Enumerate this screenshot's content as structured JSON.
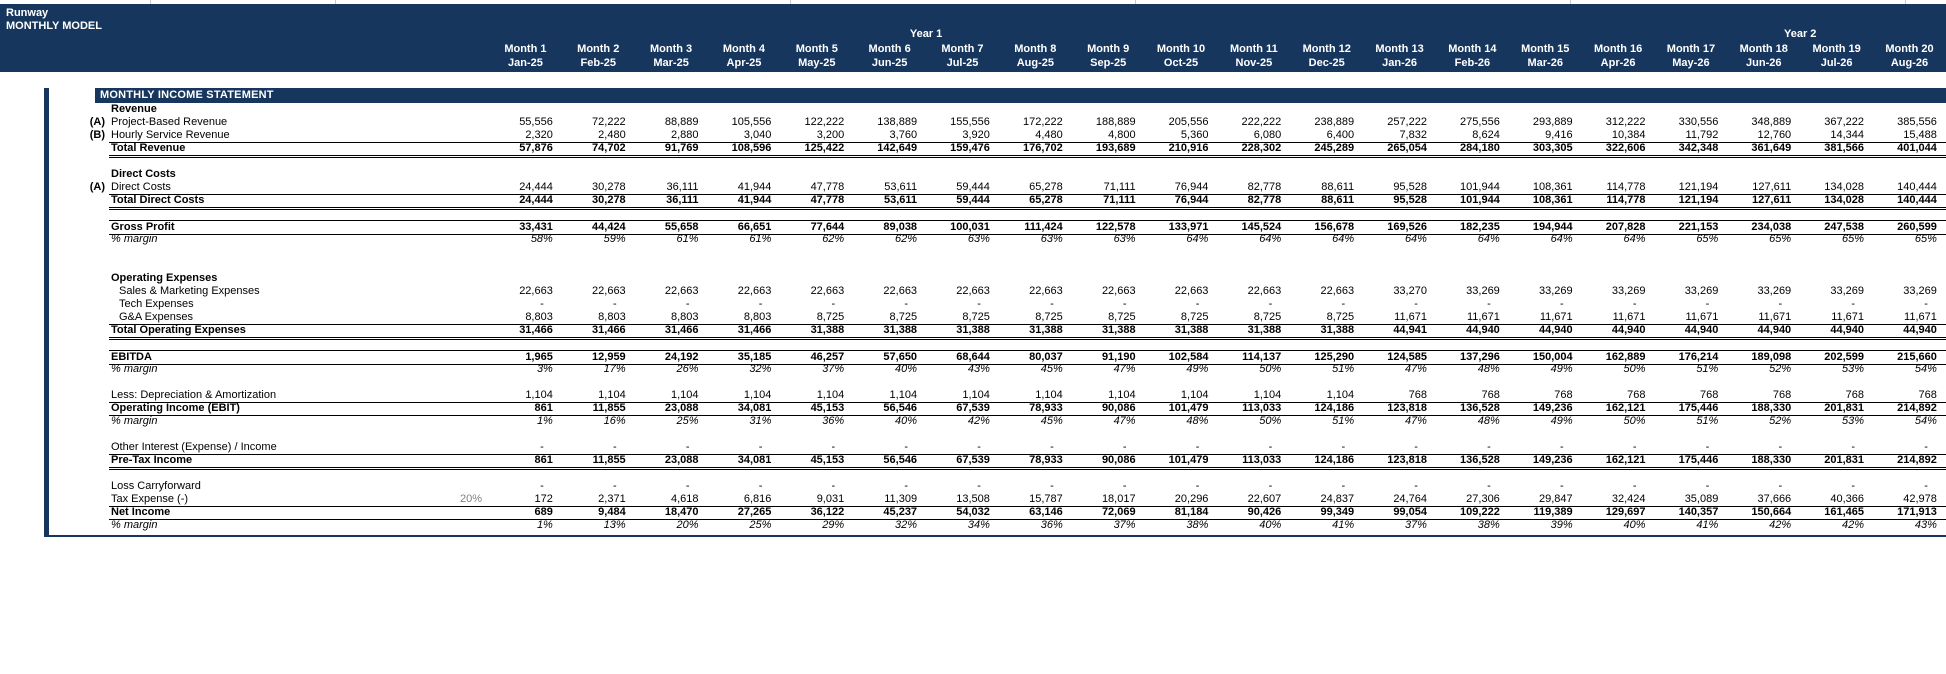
{
  "app": {
    "title_line1": "Runway",
    "title_line2": "MONTHLY MODEL"
  },
  "colors": {
    "navy": "#17365D",
    "assumption_gray": "#808080"
  },
  "header": {
    "year1_label": "Year 1",
    "year2_label": "Year 2",
    "months": [
      {
        "name": "Month 1",
        "date": "Jan-25"
      },
      {
        "name": "Month 2",
        "date": "Feb-25"
      },
      {
        "name": "Month 3",
        "date": "Mar-25"
      },
      {
        "name": "Month 4",
        "date": "Apr-25"
      },
      {
        "name": "Month 5",
        "date": "May-25"
      },
      {
        "name": "Month 6",
        "date": "Jun-25"
      },
      {
        "name": "Month 7",
        "date": "Jul-25"
      },
      {
        "name": "Month 8",
        "date": "Aug-25"
      },
      {
        "name": "Month 9",
        "date": "Sep-25"
      },
      {
        "name": "Month 10",
        "date": "Oct-25"
      },
      {
        "name": "Month 11",
        "date": "Nov-25"
      },
      {
        "name": "Month 12",
        "date": "Dec-25"
      },
      {
        "name": "Month 13",
        "date": "Jan-26"
      },
      {
        "name": "Month 14",
        "date": "Feb-26"
      },
      {
        "name": "Month 15",
        "date": "Mar-26"
      },
      {
        "name": "Month 16",
        "date": "Apr-26"
      },
      {
        "name": "Month 17",
        "date": "May-26"
      },
      {
        "name": "Month 18",
        "date": "Jun-26"
      },
      {
        "name": "Month 19",
        "date": "Jul-26"
      },
      {
        "name": "Month 20",
        "date": "Aug-26"
      }
    ]
  },
  "statement": {
    "title": "MONTHLY INCOME STATEMENT",
    "rows": [
      {
        "t": "section",
        "label": "Revenue"
      },
      {
        "t": "item",
        "prefix": "(A)",
        "label": "Project-Based Revenue",
        "v": [
          "55,556",
          "72,222",
          "88,889",
          "105,556",
          "122,222",
          "138,889",
          "155,556",
          "172,222",
          "188,889",
          "205,556",
          "222,222",
          "238,889",
          "257,222",
          "275,556",
          "293,889",
          "312,222",
          "330,556",
          "348,889",
          "367,222",
          "385,556"
        ]
      },
      {
        "t": "item",
        "prefix": "(B)",
        "label": "Hourly Service Revenue",
        "bb": "s",
        "v": [
          "2,320",
          "2,480",
          "2,880",
          "3,040",
          "3,200",
          "3,760",
          "3,920",
          "4,480",
          "4,800",
          "5,360",
          "6,080",
          "6,400",
          "7,832",
          "8,624",
          "9,416",
          "10,384",
          "11,792",
          "12,760",
          "14,344",
          "15,488"
        ]
      },
      {
        "t": "total",
        "label": "Total Revenue",
        "bb": "d",
        "v": [
          "57,876",
          "74,702",
          "91,769",
          "108,596",
          "125,422",
          "142,649",
          "159,476",
          "176,702",
          "193,689",
          "210,916",
          "228,302",
          "245,289",
          "265,054",
          "284,180",
          "303,305",
          "322,606",
          "342,348",
          "361,649",
          "381,566",
          "401,044"
        ]
      },
      {
        "t": "blank"
      },
      {
        "t": "section",
        "label": "Direct Costs"
      },
      {
        "t": "item",
        "prefix": "(A)",
        "label": "Direct Costs",
        "bb": "s",
        "v": [
          "24,444",
          "30,278",
          "36,111",
          "41,944",
          "47,778",
          "53,611",
          "59,444",
          "65,278",
          "71,111",
          "76,944",
          "82,778",
          "88,611",
          "95,528",
          "101,944",
          "108,361",
          "114,778",
          "121,194",
          "127,611",
          "134,028",
          "140,444"
        ]
      },
      {
        "t": "total",
        "label": "Total Direct Costs",
        "bb": "d",
        "v": [
          "24,444",
          "30,278",
          "36,111",
          "41,944",
          "47,778",
          "53,611",
          "59,444",
          "65,278",
          "71,111",
          "76,944",
          "82,778",
          "88,611",
          "95,528",
          "101,944",
          "108,361",
          "114,778",
          "121,194",
          "127,611",
          "134,028",
          "140,444"
        ]
      },
      {
        "t": "blank"
      },
      {
        "t": "total",
        "label": "Gross Profit",
        "bt": "s",
        "bb": "s",
        "v": [
          "33,431",
          "44,424",
          "55,658",
          "66,651",
          "77,644",
          "89,038",
          "100,031",
          "111,424",
          "122,578",
          "133,971",
          "145,524",
          "156,678",
          "169,526",
          "182,235",
          "194,944",
          "207,828",
          "221,153",
          "234,038",
          "247,538",
          "260,599"
        ]
      },
      {
        "t": "margin",
        "label": "% margin",
        "v": [
          "58%",
          "59%",
          "61%",
          "61%",
          "62%",
          "62%",
          "63%",
          "63%",
          "63%",
          "64%",
          "64%",
          "64%",
          "64%",
          "64%",
          "64%",
          "64%",
          "65%",
          "65%",
          "65%",
          "65%"
        ]
      },
      {
        "t": "blank"
      },
      {
        "t": "blank"
      },
      {
        "t": "section",
        "label": "Operating Expenses"
      },
      {
        "t": "item",
        "indent": true,
        "label": "Sales & Marketing Expenses",
        "v": [
          "22,663",
          "22,663",
          "22,663",
          "22,663",
          "22,663",
          "22,663",
          "22,663",
          "22,663",
          "22,663",
          "22,663",
          "22,663",
          "22,663",
          "33,270",
          "33,269",
          "33,269",
          "33,269",
          "33,269",
          "33,269",
          "33,269",
          "33,269"
        ]
      },
      {
        "t": "item",
        "indent": true,
        "label": "Tech Expenses",
        "v": [
          "-",
          "-",
          "-",
          "-",
          "-",
          "-",
          "-",
          "-",
          "-",
          "-",
          "-",
          "-",
          "-",
          "-",
          "-",
          "-",
          "-",
          "-",
          "-",
          "-"
        ]
      },
      {
        "t": "item",
        "indent": true,
        "label": "G&A Expenses",
        "bb": "s",
        "v": [
          "8,803",
          "8,803",
          "8,803",
          "8,803",
          "8,725",
          "8,725",
          "8,725",
          "8,725",
          "8,725",
          "8,725",
          "8,725",
          "8,725",
          "11,671",
          "11,671",
          "11,671",
          "11,671",
          "11,671",
          "11,671",
          "11,671",
          "11,671"
        ]
      },
      {
        "t": "total",
        "label": "Total Operating Expenses",
        "bb": "d",
        "v": [
          "31,466",
          "31,466",
          "31,466",
          "31,466",
          "31,388",
          "31,388",
          "31,388",
          "31,388",
          "31,388",
          "31,388",
          "31,388",
          "31,388",
          "44,941",
          "44,940",
          "44,940",
          "44,940",
          "44,940",
          "44,940",
          "44,940",
          "44,940"
        ]
      },
      {
        "t": "blank"
      },
      {
        "t": "total",
        "label": "EBITDA",
        "bt": "s",
        "bb": "s",
        "v": [
          "1,965",
          "12,959",
          "24,192",
          "35,185",
          "46,257",
          "57,650",
          "68,644",
          "80,037",
          "91,190",
          "102,584",
          "114,137",
          "125,290",
          "124,585",
          "137,296",
          "150,004",
          "162,889",
          "176,214",
          "189,098",
          "202,599",
          "215,660"
        ]
      },
      {
        "t": "margin",
        "label": "% margin",
        "v": [
          "3%",
          "17%",
          "26%",
          "32%",
          "37%",
          "40%",
          "43%",
          "45%",
          "47%",
          "49%",
          "50%",
          "51%",
          "47%",
          "48%",
          "49%",
          "50%",
          "51%",
          "52%",
          "53%",
          "54%"
        ]
      },
      {
        "t": "blank"
      },
      {
        "t": "item",
        "label": "Less: Depreciation & Amortization",
        "bb": "s",
        "v": [
          "1,104",
          "1,104",
          "1,104",
          "1,104",
          "1,104",
          "1,104",
          "1,104",
          "1,104",
          "1,104",
          "1,104",
          "1,104",
          "1,104",
          "768",
          "768",
          "768",
          "768",
          "768",
          "768",
          "768",
          "768"
        ]
      },
      {
        "t": "total",
        "label": "Operating Income (EBIT)",
        "bb": "s",
        "v": [
          "861",
          "11,855",
          "23,088",
          "34,081",
          "45,153",
          "56,546",
          "67,539",
          "78,933",
          "90,086",
          "101,479",
          "113,033",
          "124,186",
          "123,818",
          "136,528",
          "149,236",
          "162,121",
          "175,446",
          "188,330",
          "201,831",
          "214,892"
        ]
      },
      {
        "t": "margin",
        "label": "% margin",
        "v": [
          "1%",
          "16%",
          "25%",
          "31%",
          "36%",
          "40%",
          "42%",
          "45%",
          "47%",
          "48%",
          "50%",
          "51%",
          "47%",
          "48%",
          "49%",
          "50%",
          "51%",
          "52%",
          "53%",
          "54%"
        ]
      },
      {
        "t": "blank"
      },
      {
        "t": "item",
        "label": "Other Interest (Expense) / Income",
        "bb": "s",
        "v": [
          "-",
          "-",
          "-",
          "-",
          "-",
          "-",
          "-",
          "-",
          "-",
          "-",
          "-",
          "-",
          "-",
          "-",
          "-",
          "-",
          "-",
          "-",
          "-",
          "-"
        ]
      },
      {
        "t": "total",
        "label": "Pre-Tax Income",
        "bb": "d",
        "v": [
          "861",
          "11,855",
          "23,088",
          "34,081",
          "45,153",
          "56,546",
          "67,539",
          "78,933",
          "90,086",
          "101,479",
          "113,033",
          "124,186",
          "123,818",
          "136,528",
          "149,236",
          "162,121",
          "175,446",
          "188,330",
          "201,831",
          "214,892"
        ]
      },
      {
        "t": "blank"
      },
      {
        "t": "item",
        "label": "Loss Carryforward",
        "v": [
          "-",
          "-",
          "-",
          "-",
          "-",
          "-",
          "-",
          "-",
          "-",
          "-",
          "-",
          "-",
          "-",
          "-",
          "-",
          "-",
          "-",
          "-",
          "-",
          "-"
        ]
      },
      {
        "t": "item",
        "label": "Tax Expense (-)",
        "assumption": "20%",
        "bb": "s",
        "v": [
          "172",
          "2,371",
          "4,618",
          "6,816",
          "9,031",
          "11,309",
          "13,508",
          "15,787",
          "18,017",
          "20,296",
          "22,607",
          "24,837",
          "24,764",
          "27,306",
          "29,847",
          "32,424",
          "35,089",
          "37,666",
          "40,366",
          "42,978"
        ]
      },
      {
        "t": "total",
        "label": "Net Income",
        "bb": "s",
        "v": [
          "689",
          "9,484",
          "18,470",
          "27,265",
          "36,122",
          "45,237",
          "54,032",
          "63,146",
          "72,069",
          "81,184",
          "90,426",
          "99,349",
          "99,054",
          "109,222",
          "119,389",
          "129,697",
          "140,357",
          "150,664",
          "161,465",
          "171,913"
        ]
      },
      {
        "t": "margin",
        "label": "% margin",
        "v": [
          "1%",
          "13%",
          "20%",
          "25%",
          "29%",
          "32%",
          "34%",
          "36%",
          "37%",
          "38%",
          "40%",
          "41%",
          "37%",
          "38%",
          "39%",
          "40%",
          "41%",
          "42%",
          "42%",
          "43%"
        ]
      }
    ]
  }
}
